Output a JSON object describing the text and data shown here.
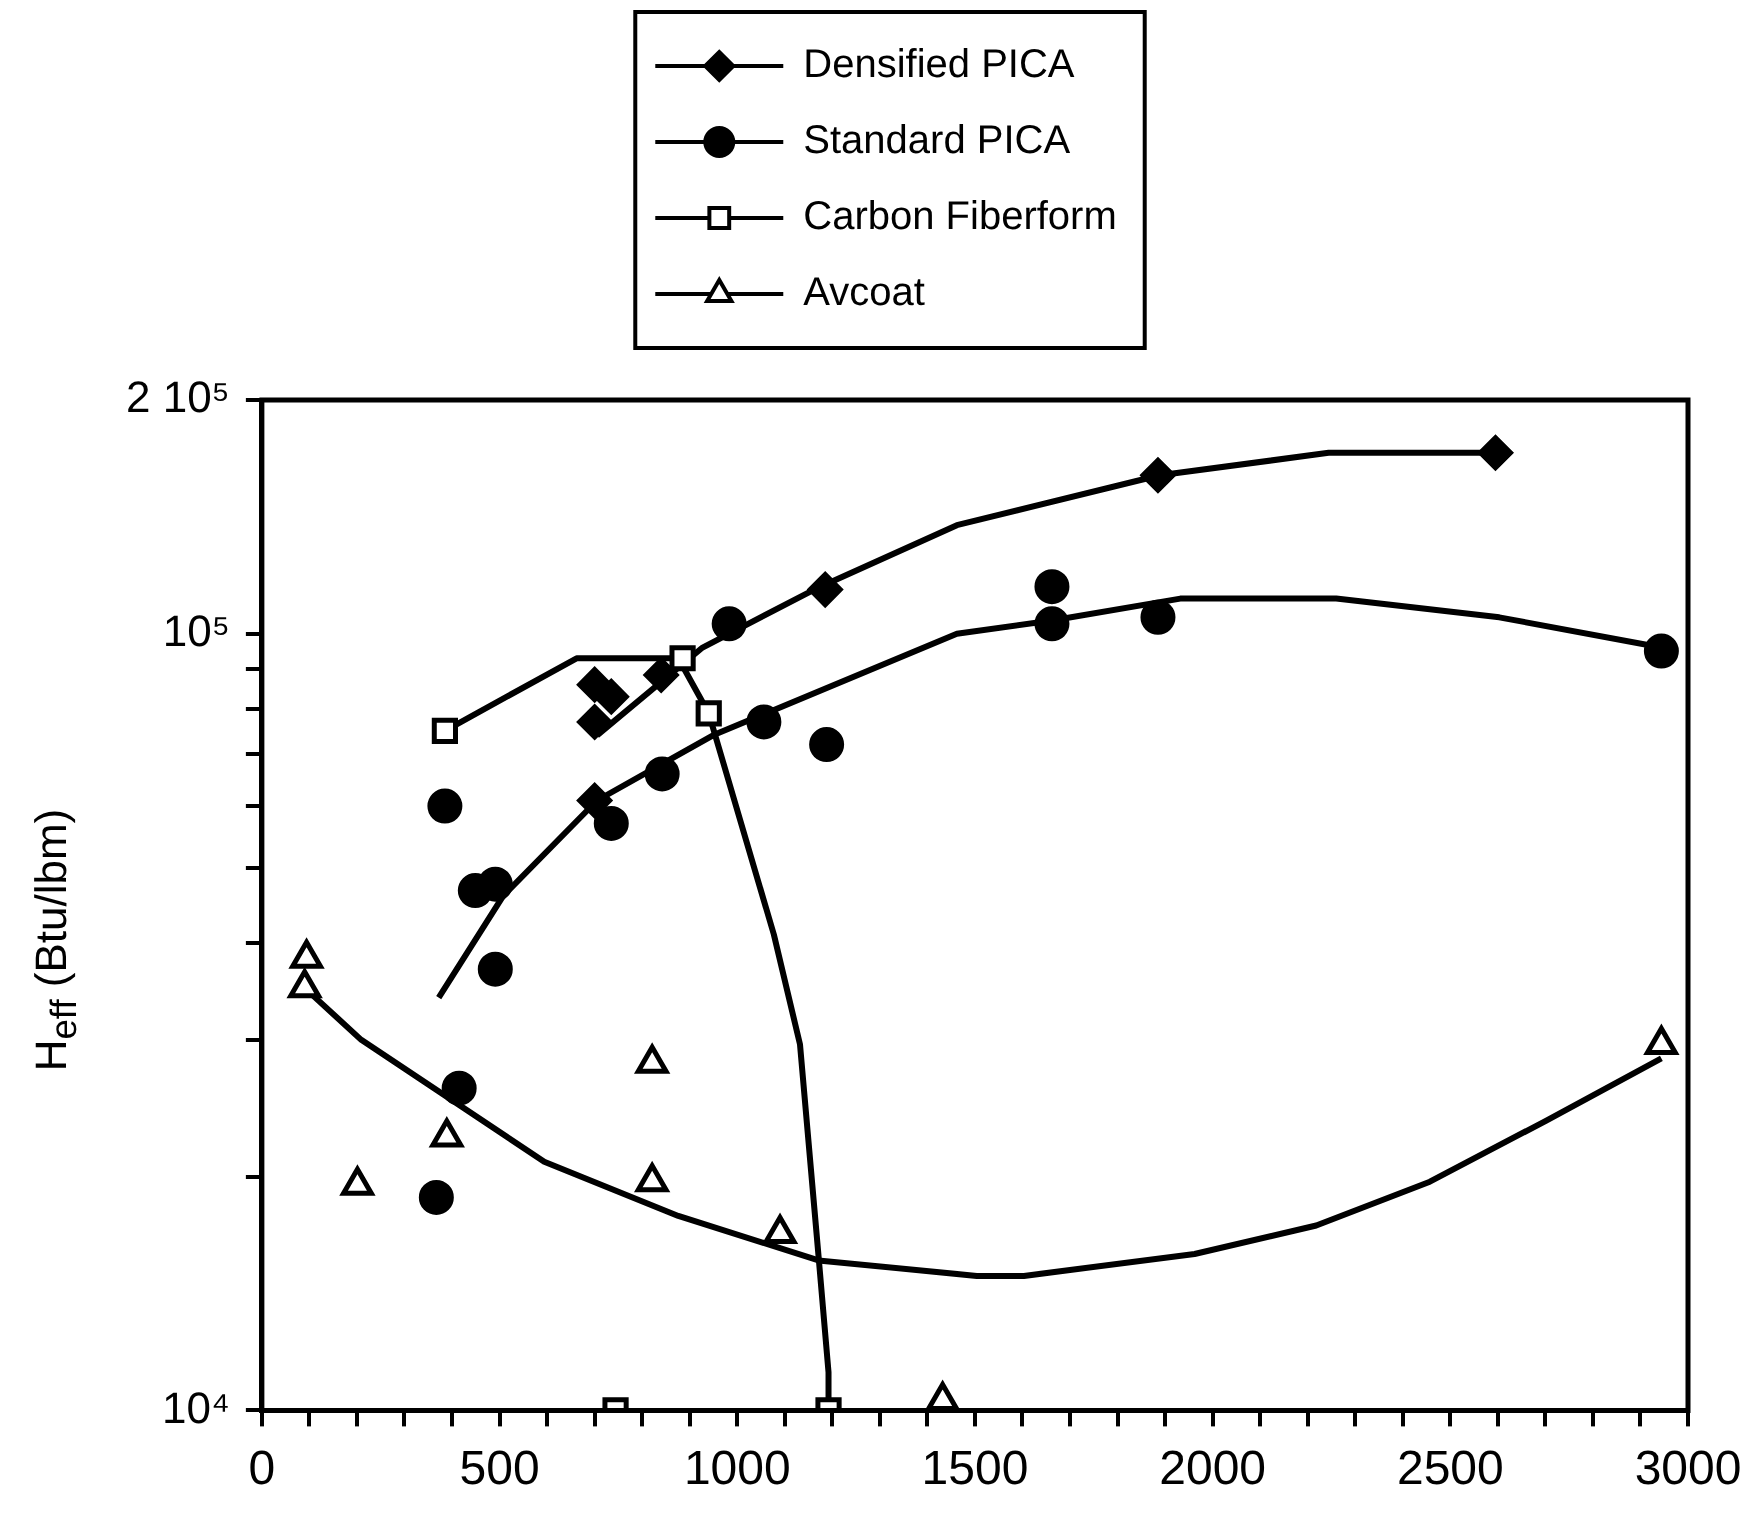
{
  "chart_data": {
    "type": "scatter",
    "ylabel": "H$_{eff}$ (Btu/lbm)",
    "log": "y",
    "legend": "top",
    "grid": false,
    "xlim": [
      0,
      3000
    ],
    "xticks": [
      0,
      {
        "value": 100,
        "label": null
      },
      {
        "value": 200,
        "label": null
      },
      {
        "value": 300,
        "label": null
      },
      {
        "value": 400,
        "label": null
      },
      500,
      {
        "value": 600,
        "label": null
      },
      {
        "value": 700,
        "label": null
      },
      {
        "value": 800,
        "label": null
      },
      {
        "value": 900,
        "label": null
      },
      1000,
      {
        "value": 1100,
        "label": null
      },
      {
        "value": 1200,
        "label": null
      },
      {
        "value": 1300,
        "label": null
      },
      {
        "value": 1400,
        "label": null
      },
      1500,
      {
        "value": 1600,
        "label": null
      },
      {
        "value": 1700,
        "label": null
      },
      {
        "value": 1800,
        "label": null
      },
      {
        "value": 1900,
        "label": null
      },
      2000,
      {
        "value": 2100,
        "label": null
      },
      {
        "value": 2200,
        "label": null
      },
      {
        "value": 2300,
        "label": null
      },
      {
        "value": 2400,
        "label": null
      },
      2500,
      {
        "value": 2600,
        "label": null
      },
      {
        "value": 2700,
        "label": null
      },
      {
        "value": 2800,
        "label": null
      },
      {
        "value": 2900,
        "label": null
      },
      3000
    ],
    "ylim": [
      10000,
      200000
    ],
    "yticks": [
      {
        "value": 10000,
        "label": "10⁴"
      },
      {
        "value": 20000,
        "label": null
      },
      {
        "value": 30000,
        "label": null
      },
      {
        "value": 40000,
        "label": null
      },
      {
        "value": 50000,
        "label": null
      },
      {
        "value": 60000,
        "label": null
      },
      {
        "value": 70000,
        "label": null
      },
      {
        "value": 80000,
        "label": null
      },
      {
        "value": 90000,
        "label": null
      },
      {
        "value": 100000,
        "label": "10⁵"
      },
      {
        "value": 200000,
        "label": "2 10⁵"
      }
    ],
    "series": [
      {
        "name": "Densified PICA",
        "marker": "diamond",
        "color": "#000000",
        "x": [
          700,
          700,
          735,
          700,
          840,
          1185,
          1885,
          2595
        ],
        "values": [
          86000,
          77000,
          83000,
          61000,
          88500,
          114000,
          160000,
          171000
        ]
      },
      {
        "name": "Standard PICA",
        "marker": "circle",
        "color": "#000000",
        "x": [
          367,
          385,
          415,
          449,
          491,
          491,
          735,
          842,
          983,
          1056,
          1188,
          1662,
          1662,
          1885,
          2944
        ],
        "values": [
          18800,
          60000,
          26000,
          46700,
          47600,
          37000,
          57000,
          66000,
          103000,
          77000,
          72000,
          115000,
          103000,
          105000,
          95000
        ]
      },
      {
        "name": "Carbon Fiberform",
        "marker": "square",
        "color": "#000000",
        "x": [
          385,
          885,
          940,
          744,
          1192
        ],
        "values": [
          75000,
          93000,
          79000,
          10000,
          10000
        ]
      },
      {
        "name": "Avcoat",
        "marker": "triangle",
        "color": "#000000",
        "x": [
          94,
          90,
          201,
          389,
          821,
          821,
          1090,
          1432,
          2944
        ],
        "values": [
          38200,
          35000,
          19500,
          22500,
          28000,
          19700,
          16900,
          10300,
          29600
        ]
      },
      {
        "type": "line",
        "marker": "none",
        "color": "#000000",
        "x": [
          705,
          927,
          1162,
          1462,
          1889,
          2244,
          2603
        ],
        "values": [
          74000,
          96000,
          114000,
          138000,
          160000,
          171000,
          171000
        ]
      },
      {
        "type": "line",
        "marker": "none",
        "color": "#000000",
        "x": [
          372,
          508,
          705,
          949,
          1462,
          1662,
          1932,
          2260,
          2603,
          2944
        ],
        "values": [
          34000,
          46000,
          61000,
          74000,
          100000,
          104000,
          111000,
          111000,
          105000,
          96000
        ]
      },
      {
        "type": "line",
        "marker": "none",
        "color": "#000000",
        "x": [
          385,
          662,
          876,
          940,
          1077,
          1132,
          1171,
          1192,
          1192
        ],
        "values": [
          75000,
          93000,
          93000,
          79000,
          41000,
          29600,
          15800,
          11200,
          10000
        ]
      },
      {
        "type": "line",
        "marker": "none",
        "color": "#000000",
        "x": [
          90,
          209,
          594,
          876,
          1171,
          1504,
          1603,
          1962,
          2218,
          2457,
          2701,
          2944
        ],
        "values": [
          35000,
          30000,
          20900,
          17800,
          15600,
          14900,
          14900,
          15900,
          17300,
          19700,
          23600,
          28400
        ]
      }
    ]
  }
}
